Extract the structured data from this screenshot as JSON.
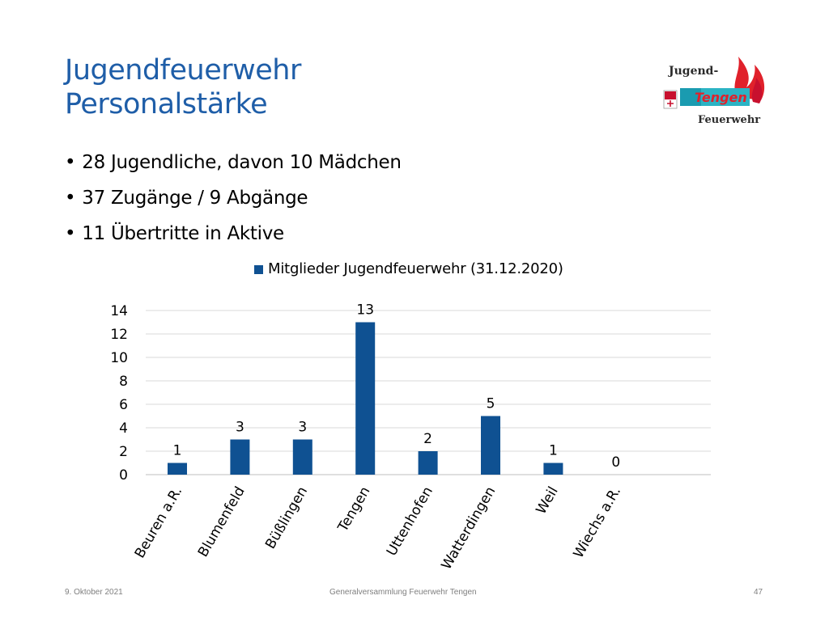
{
  "slide": {
    "title_line1": "Jugendfeuerwehr",
    "title_line2": "Personalstärke",
    "bullets": [
      "28 Jugendliche, davon 10 Mädchen",
      "37 Zugänge / 9 Abgänge",
      "11 Übertritte in Aktive"
    ],
    "logo": {
      "line1": "Jugend-",
      "line2": "Tengen",
      "line3": "Feuerwehr"
    },
    "footer": {
      "date": "9. Oktober 2021",
      "event": "Generalversammlung Feuerwehr Tengen",
      "page": "47"
    }
  },
  "colors": {
    "title": "#1f5ea8",
    "bar": "#0f5192",
    "gridline": "#d9d9d9"
  },
  "chart_data": {
    "type": "bar",
    "categories": [
      "Beuren a.R.",
      "Blumenfeld",
      "Büßlingen",
      "Tengen",
      "Uttenhofen",
      "Watterdingen",
      "Weil",
      "Wiechs a.R."
    ],
    "series": [
      {
        "name": "Mitglieder Jugendfeuerwehr (31.12.2020)",
        "values": [
          1,
          3,
          3,
          13,
          2,
          5,
          1,
          0
        ]
      }
    ],
    "yticks": [
      0,
      2,
      4,
      6,
      8,
      10,
      12,
      14
    ],
    "ylim": [
      0,
      14
    ],
    "grid": true,
    "legend": "top",
    "data_labels": true
  }
}
